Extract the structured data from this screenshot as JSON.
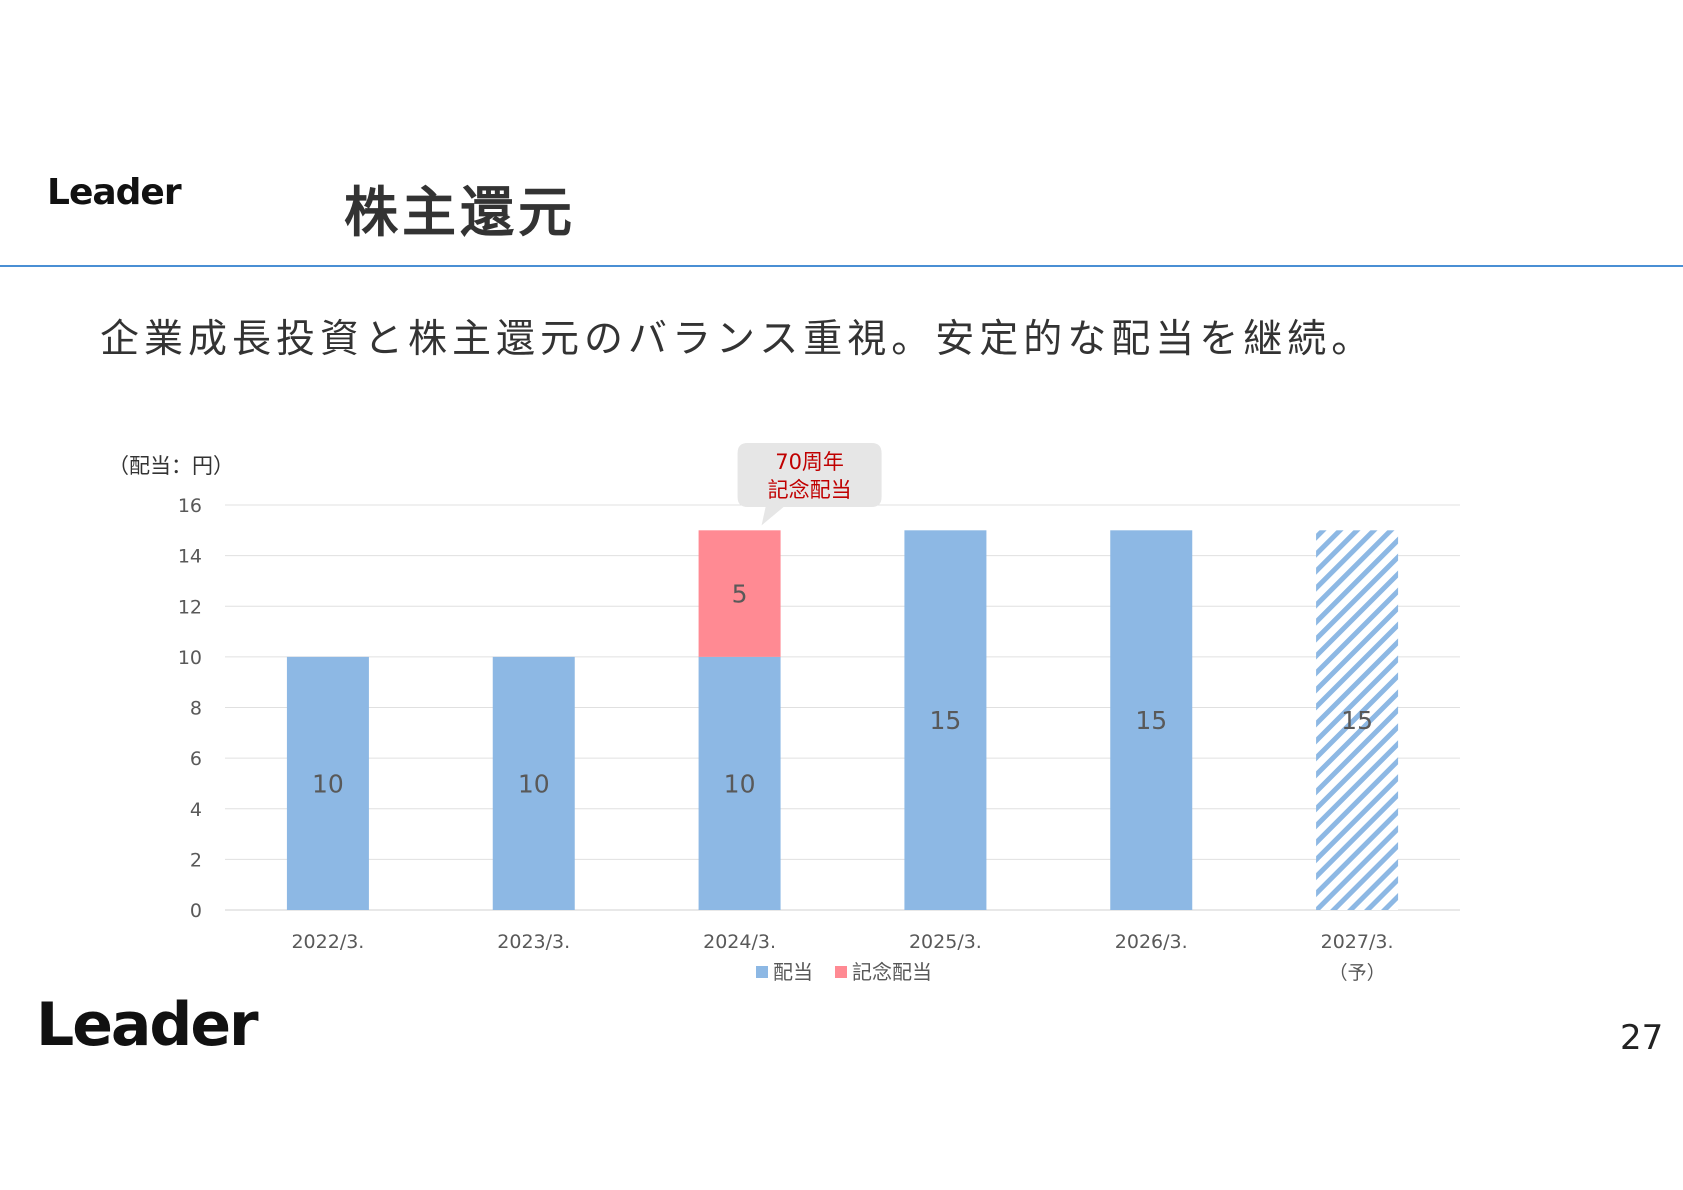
{
  "header": {
    "logo_text": "Leader",
    "title": "株主還元"
  },
  "subtitle": "企業成長投資と株主還元のバランス重視。安定的な配当を継続。",
  "footer": {
    "logo_text": "Leader",
    "page_number": "27"
  },
  "colors": {
    "dividend": "#8db8e4",
    "commemorative": "#ff8a93",
    "accent_rule": "#4a8fd4",
    "callout_bg": "#e6e6e6",
    "callout_text": "#c00000"
  },
  "chart_data": {
    "type": "bar",
    "stacked": true,
    "unit_label": "（配当：円）",
    "categories": [
      "2022/3.",
      "2023/3.",
      "2024/3.",
      "2025/3.",
      "2026/3.",
      "2027/3.\n（予）"
    ],
    "series": [
      {
        "name": "配当",
        "values": [
          10,
          10,
          10,
          15,
          15,
          15
        ],
        "color": "#8db8e4",
        "forecast_hatched": [
          false,
          false,
          false,
          false,
          false,
          true
        ]
      },
      {
        "name": "記念配当",
        "values": [
          0,
          0,
          5,
          0,
          0,
          0
        ],
        "color": "#ff8a93"
      }
    ],
    "data_labels": [
      [
        "10",
        "10",
        "10",
        "15",
        "15",
        "15"
      ],
      [
        "",
        "",
        "5",
        "",
        "",
        ""
      ]
    ],
    "ylim": [
      0,
      16
    ],
    "yticks": [
      0,
      2,
      4,
      6,
      8,
      10,
      12,
      14,
      16
    ],
    "grid": true,
    "legend_position": "bottom",
    "annotation": {
      "category_index": 2,
      "text": [
        "70周年",
        "記念配当"
      ]
    }
  }
}
